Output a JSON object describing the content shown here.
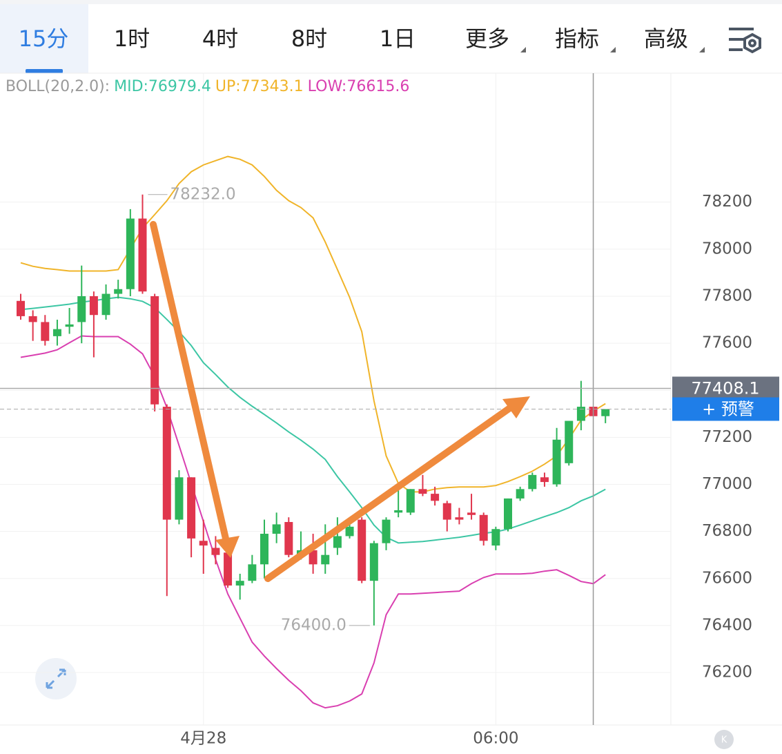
{
  "tabs": [
    "15分",
    "1时",
    "4时",
    "8时",
    "1日",
    "更多",
    "指标",
    "高级"
  ],
  "chart_data": {
    "type": "candlestick",
    "indicator": {
      "label": "BOLL(20,2.0):",
      "mid": "MID:76979.4",
      "up": "UP:77343.1",
      "low": "LOW:76615.6"
    },
    "categories": [
      null,
      null,
      null,
      null,
      null,
      null,
      null,
      null,
      null,
      null,
      null,
      null,
      null,
      null,
      null,
      "4月28",
      null,
      null,
      null,
      null,
      null,
      null,
      null,
      null,
      null,
      null,
      null,
      null,
      null,
      null,
      null,
      null,
      null,
      null,
      null,
      null,
      null,
      null,
      null,
      "06:00",
      null,
      null,
      null,
      null,
      null,
      null,
      null,
      null,
      null
    ],
    "open": [
      77780,
      77715,
      77690,
      77630,
      77670,
      77690,
      77800,
      77720,
      77810,
      77830,
      78130,
      77800,
      77330,
      76850,
      77030,
      76760,
      76730,
      76710,
      76570,
      76590,
      76660,
      76790,
      76840,
      76700,
      76720,
      76660,
      76730,
      76780,
      76850,
      76590,
      76750,
      76880,
      76880,
      76980,
      76960,
      76920,
      76860,
      76880,
      76870,
      76740,
      76810,
      76940,
      76980,
      77030,
      77000,
      77090,
      77270,
      77330,
      77290
    ],
    "high": [
      77810,
      77740,
      77720,
      77700,
      77750,
      77930,
      77820,
      77850,
      77870,
      78170,
      78232,
      77810,
      77340,
      77060,
      77030,
      76850,
      76780,
      76780,
      76620,
      76700,
      76850,
      76880,
      76860,
      76800,
      76790,
      76830,
      76860,
      76860,
      76860,
      76760,
      76860,
      76990,
      76980,
      77040,
      76990,
      76930,
      76900,
      76960,
      76880,
      76820,
      76940,
      76990,
      77050,
      77050,
      77240,
      77270,
      77440,
      77330,
      77320
    ],
    "low": [
      77700,
      77610,
      77590,
      77590,
      77640,
      77600,
      77540,
      77700,
      77790,
      77800,
      77810,
      77310,
      76525,
      76830,
      76690,
      76620,
      76660,
      76560,
      76510,
      76580,
      76600,
      76750,
      76690,
      76680,
      76620,
      76620,
      76700,
      76770,
      76580,
      76400,
      76720,
      76860,
      76870,
      76950,
      76910,
      76800,
      76830,
      76850,
      76740,
      76720,
      76800,
      76930,
      76970,
      76990,
      76990,
      77080,
      77230,
      77290,
      77260
    ],
    "close": [
      77715,
      77690,
      77610,
      77660,
      77680,
      77800,
      77720,
      77810,
      77830,
      78130,
      77820,
      77340,
      76850,
      77030,
      76770,
      76740,
      76700,
      76570,
      76590,
      76660,
      76790,
      76830,
      76700,
      76720,
      76660,
      76700,
      76780,
      76820,
      76590,
      76750,
      76850,
      76890,
      76980,
      76960,
      76930,
      76850,
      76850,
      76870,
      76760,
      76810,
      76940,
      76980,
      77040,
      77010,
      77190,
      77270,
      77330,
      77290,
      77320
    ],
    "up_color": "#2eb55a",
    "down_color": "#e0364d",
    "series": [
      {
        "name": "UP",
        "color": "#f0b429",
        "values": [
          77942,
          77927,
          77918,
          77913,
          77907,
          77907,
          77907,
          77907,
          77913,
          78001,
          78089,
          78147,
          78206,
          78279,
          78329,
          78358,
          78376,
          78394,
          78382,
          78358,
          78309,
          78250,
          78206,
          78177,
          78133,
          78030,
          77913,
          77795,
          77649,
          77355,
          77121,
          77004,
          76968,
          76968,
          76980,
          76986,
          76989,
          76989,
          76989,
          76995,
          77012,
          77033,
          77056,
          77086,
          77121,
          77194,
          77273,
          77311,
          77343
        ]
      },
      {
        "name": "MID",
        "color": "#3cc6a4",
        "values": [
          77743,
          77748,
          77754,
          77760,
          77766,
          77775,
          77781,
          77789,
          77795,
          77789,
          77778,
          77751,
          77701,
          77649,
          77590,
          77517,
          77467,
          77414,
          77370,
          77332,
          77297,
          77261,
          77223,
          77188,
          77150,
          77106,
          77033,
          76968,
          76901,
          76827,
          76775,
          76751,
          76754,
          76757,
          76763,
          76769,
          76775,
          76783,
          76792,
          76798,
          76810,
          76827,
          76845,
          76863,
          76880,
          76901,
          76930,
          76951,
          76979
        ]
      },
      {
        "name": "LOW",
        "color": "#d93fb0",
        "values": [
          77540,
          77549,
          77558,
          77572,
          77602,
          77631,
          77628,
          77628,
          77628,
          77596,
          77555,
          77458,
          77326,
          77165,
          77004,
          76842,
          76681,
          76534,
          76431,
          76329,
          76270,
          76217,
          76167,
          76123,
          76071,
          76050,
          76059,
          76079,
          76109,
          76241,
          76446,
          76534,
          76534,
          76537,
          76540,
          76543,
          76546,
          76578,
          76604,
          76619,
          76619,
          76619,
          76622,
          76631,
          76637,
          76613,
          76587,
          76578,
          76616
        ]
      }
    ],
    "ylim": [
      75977,
      78748
    ],
    "yticks": [
      76200,
      76400,
      76600,
      76800,
      77000,
      77200,
      77400,
      77600,
      77800,
      78000,
      78200
    ],
    "annotations": [
      {
        "index": 10,
        "value": 78232,
        "label": "78232.0"
      },
      {
        "index": 29,
        "value": 76400,
        "label": "76400.0"
      }
    ],
    "last_price": {
      "value": 77408.1,
      "label": "77408.1",
      "button": "+ 预警"
    }
  }
}
